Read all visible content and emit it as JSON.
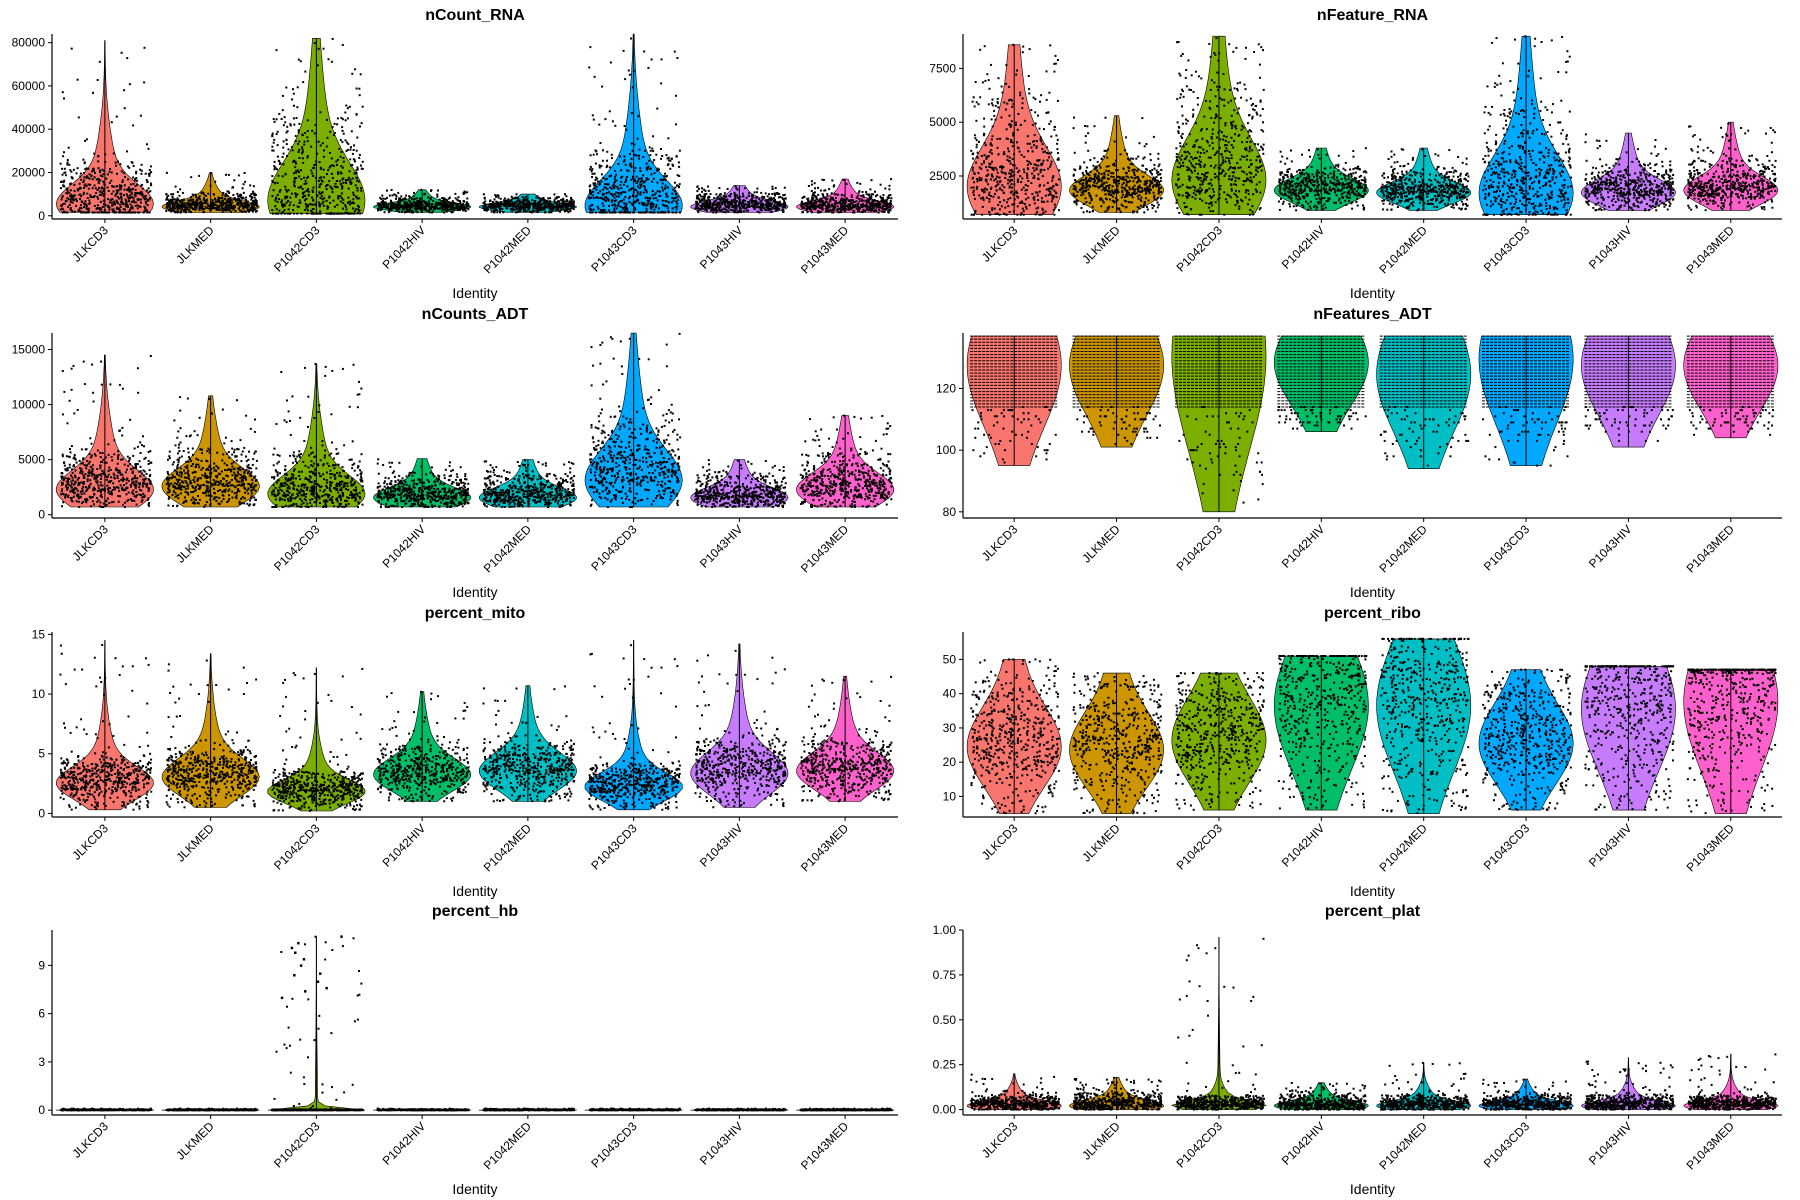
{
  "chart_data": [
    {
      "type": "violin",
      "title": "nCount_RNA",
      "xlabel": "Identity",
      "ylabel": "",
      "categories": [
        "JLKCD3",
        "JLKMED",
        "P1042CD3",
        "P1042HIV",
        "P1042MED",
        "P1043CD3",
        "P1043HIV",
        "P1043MED"
      ],
      "colors": [
        "#F8766D",
        "#CD9600",
        "#7CAE00",
        "#00BE67",
        "#00BFC4",
        "#00A9FF",
        "#C77CFF",
        "#FF61CC"
      ],
      "yticks": [
        "0",
        "20000",
        "40000",
        "60000",
        "80000"
      ],
      "ylim": [
        -1500,
        84000
      ],
      "distribution": [
        {
          "min": 1500,
          "mode": 5000,
          "q90": 25000,
          "max": 81000
        },
        {
          "min": 1500,
          "mode": 4000,
          "q90": 10000,
          "max": 20000
        },
        {
          "min": 1000,
          "mode": 6000,
          "q90": 45000,
          "max": 82000
        },
        {
          "min": 1500,
          "mode": 4000,
          "q90": 8000,
          "max": 12000
        },
        {
          "min": 1500,
          "mode": 4000,
          "q90": 8000,
          "max": 10000
        },
        {
          "min": 1500,
          "mode": 4000,
          "q90": 30000,
          "max": 84000
        },
        {
          "min": 1500,
          "mode": 4000,
          "q90": 10000,
          "max": 14000
        },
        {
          "min": 1500,
          "mode": 4000,
          "q90": 10000,
          "max": 17000
        }
      ]
    },
    {
      "type": "violin",
      "title": "nFeature_RNA",
      "xlabel": "Identity",
      "ylabel": "",
      "categories": [
        "JLKCD3",
        "JLKMED",
        "P1042CD3",
        "P1042HIV",
        "P1042MED",
        "P1043CD3",
        "P1043HIV",
        "P1043MED"
      ],
      "colors": [
        "#F8766D",
        "#CD9600",
        "#7CAE00",
        "#00BE67",
        "#00BFC4",
        "#00A9FF",
        "#C77CFF",
        "#FF61CC"
      ],
      "yticks": [
        "2500",
        "5000",
        "7500"
      ],
      "ylim": [
        500,
        9100
      ],
      "distribution": [
        {
          "min": 700,
          "mode": 1900,
          "q90": 6000,
          "max": 8600
        },
        {
          "min": 800,
          "mode": 1800,
          "q90": 3300,
          "max": 5300
        },
        {
          "min": 700,
          "mode": 2200,
          "q90": 6500,
          "max": 9000
        },
        {
          "min": 900,
          "mode": 1800,
          "q90": 2800,
          "max": 3800
        },
        {
          "min": 900,
          "mode": 1700,
          "q90": 2700,
          "max": 3800
        },
        {
          "min": 700,
          "mode": 1600,
          "q90": 5500,
          "max": 9000
        },
        {
          "min": 900,
          "mode": 1700,
          "q90": 3000,
          "max": 4500
        },
        {
          "min": 900,
          "mode": 1800,
          "q90": 3200,
          "max": 5000
        }
      ]
    },
    {
      "type": "violin",
      "title": "nCounts_ADT",
      "xlabel": "Identity",
      "ylabel": "",
      "categories": [
        "JLKCD3",
        "JLKMED",
        "P1042CD3",
        "P1042HIV",
        "P1042MED",
        "P1043CD3",
        "P1043HIV",
        "P1043MED"
      ],
      "colors": [
        "#F8766D",
        "#CD9600",
        "#7CAE00",
        "#00BE67",
        "#00BFC4",
        "#00A9FF",
        "#C77CFF",
        "#FF61CC"
      ],
      "yticks": [
        "0",
        "5000",
        "10000",
        "15000"
      ],
      "ylim": [
        -300,
        16500
      ],
      "distribution": [
        {
          "min": 700,
          "mode": 2200,
          "q90": 6000,
          "max": 14500
        },
        {
          "min": 700,
          "mode": 2500,
          "q90": 6000,
          "max": 10800
        },
        {
          "min": 700,
          "mode": 1800,
          "q90": 5500,
          "max": 13700
        },
        {
          "min": 700,
          "mode": 1500,
          "q90": 3500,
          "max": 5100
        },
        {
          "min": 700,
          "mode": 1500,
          "q90": 3500,
          "max": 5000
        },
        {
          "min": 700,
          "mode": 3000,
          "q90": 9000,
          "max": 16500
        },
        {
          "min": 700,
          "mode": 1500,
          "q90": 3500,
          "max": 5000
        },
        {
          "min": 700,
          "mode": 2200,
          "q90": 5500,
          "max": 9000
        }
      ]
    },
    {
      "type": "violin",
      "title": "nFeatures_ADT",
      "xlabel": "Identity",
      "ylabel": "",
      "categories": [
        "JLKCD3",
        "JLKMED",
        "P1042CD3",
        "P1042HIV",
        "P1042MED",
        "P1043CD3",
        "P1043HIV",
        "P1043MED"
      ],
      "colors": [
        "#F8766D",
        "#CD9600",
        "#7CAE00",
        "#00BE67",
        "#00BFC4",
        "#00A9FF",
        "#C77CFF",
        "#FF61CC"
      ],
      "yticks": [
        "80",
        "100",
        "120"
      ],
      "ylim": [
        78,
        138
      ],
      "distribution": [
        {
          "min": 95,
          "mode": 127,
          "q90": 136,
          "max": 137
        },
        {
          "min": 101,
          "mode": 127,
          "q90": 136,
          "max": 137
        },
        {
          "min": 80,
          "mode": 130,
          "q90": 136,
          "max": 137
        },
        {
          "min": 106,
          "mode": 128,
          "q90": 136,
          "max": 137
        },
        {
          "min": 94,
          "mode": 124,
          "q90": 136,
          "max": 137
        },
        {
          "min": 95,
          "mode": 129,
          "q90": 136,
          "max": 137
        },
        {
          "min": 101,
          "mode": 127,
          "q90": 136,
          "max": 137
        },
        {
          "min": 104,
          "mode": 127,
          "q90": 136,
          "max": 137
        }
      ]
    },
    {
      "type": "violin",
      "title": "percent_mito",
      "xlabel": "Identity",
      "ylabel": "",
      "categories": [
        "JLKCD3",
        "JLKMED",
        "P1042CD3",
        "P1042HIV",
        "P1042MED",
        "P1043CD3",
        "P1043HIV",
        "P1043MED"
      ],
      "colors": [
        "#F8766D",
        "#CD9600",
        "#7CAE00",
        "#00BE67",
        "#00BFC4",
        "#00A9FF",
        "#C77CFF",
        "#FF61CC"
      ],
      "yticks": [
        "0",
        "5",
        "10",
        "15"
      ],
      "ylim": [
        -0.3,
        15.2
      ],
      "distribution": [
        {
          "min": 0.3,
          "mode": 2.5,
          "q90": 4.5,
          "max": 14.5
        },
        {
          "min": 0.5,
          "mode": 3.0,
          "q90": 5.0,
          "max": 13.4
        },
        {
          "min": 0.2,
          "mode": 1.8,
          "q90": 3.5,
          "max": 12.2
        },
        {
          "min": 1.0,
          "mode": 3.2,
          "q90": 5.5,
          "max": 10.2
        },
        {
          "min": 1.0,
          "mode": 3.5,
          "q90": 5.5,
          "max": 10.7
        },
        {
          "min": 0.3,
          "mode": 2.2,
          "q90": 4.0,
          "max": 14.5
        },
        {
          "min": 0.5,
          "mode": 3.3,
          "q90": 6.0,
          "max": 14.2
        },
        {
          "min": 1.0,
          "mode": 3.5,
          "q90": 6.0,
          "max": 11.5
        }
      ]
    },
    {
      "type": "violin",
      "title": "percent_ribo",
      "xlabel": "Identity",
      "ylabel": "",
      "categories": [
        "JLKCD3",
        "JLKMED",
        "P1042CD3",
        "P1042HIV",
        "P1042MED",
        "P1043CD3",
        "P1043HIV",
        "P1043MED"
      ],
      "colors": [
        "#F8766D",
        "#CD9600",
        "#7CAE00",
        "#00BE67",
        "#00BFC4",
        "#00A9FF",
        "#C77CFF",
        "#FF61CC"
      ],
      "yticks": [
        "10",
        "20",
        "30",
        "40",
        "50"
      ],
      "ylim": [
        4,
        58
      ],
      "distribution": [
        {
          "min": 5,
          "mode": 24,
          "q90": 40,
          "max": 50
        },
        {
          "min": 5,
          "mode": 23,
          "q90": 42,
          "max": 46
        },
        {
          "min": 6,
          "mode": 26,
          "q90": 38,
          "max": 46
        },
        {
          "min": 6,
          "mode": 36,
          "q90": 45,
          "max": 51
        },
        {
          "min": 5,
          "mode": 36,
          "q90": 47,
          "max": 56
        },
        {
          "min": 6,
          "mode": 25,
          "q90": 40,
          "max": 47
        },
        {
          "min": 6,
          "mode": 35,
          "q90": 44,
          "max": 48
        },
        {
          "min": 5,
          "mode": 37,
          "q90": 46,
          "max": 47
        }
      ]
    },
    {
      "type": "violin",
      "title": "percent_hb",
      "xlabel": "Identity",
      "ylabel": "",
      "categories": [
        "JLKCD3",
        "JLKMED",
        "P1042CD3",
        "P1042HIV",
        "P1042MED",
        "P1043CD3",
        "P1043HIV",
        "P1043MED"
      ],
      "colors": [
        "#F8766D",
        "#CD9600",
        "#7CAE00",
        "#00BE67",
        "#00BFC4",
        "#00A9FF",
        "#C77CFF",
        "#FF61CC"
      ],
      "yticks": [
        "0",
        "3",
        "6",
        "9"
      ],
      "ylim": [
        -0.3,
        11.2
      ],
      "distribution": [
        {
          "min": 0,
          "mode": 0,
          "q90": 0.05,
          "max": 0.1
        },
        {
          "min": 0,
          "mode": 0,
          "q90": 0.05,
          "max": 0.1
        },
        {
          "min": 0,
          "mode": 0,
          "q90": 0.05,
          "max": 10.8
        },
        {
          "min": 0,
          "mode": 0,
          "q90": 0.05,
          "max": 0.1
        },
        {
          "min": 0,
          "mode": 0,
          "q90": 0.05,
          "max": 0.1
        },
        {
          "min": 0,
          "mode": 0,
          "q90": 0.05,
          "max": 0.1
        },
        {
          "min": 0,
          "mode": 0,
          "q90": 0.05,
          "max": 0.1
        },
        {
          "min": 0,
          "mode": 0,
          "q90": 0.05,
          "max": 0.1
        }
      ],
      "outliers": [
        {
          "category": "P1042CD3",
          "values": [
            10.8,
            10.4,
            10.1,
            9.8,
            9.4,
            9.0,
            8.5,
            8.4,
            8.0,
            7.6,
            7.4,
            7.0
          ]
        }
      ]
    },
    {
      "type": "violin",
      "title": "percent_plat",
      "xlabel": "Identity",
      "ylabel": "",
      "categories": [
        "JLKCD3",
        "JLKMED",
        "P1042CD3",
        "P1042HIV",
        "P1042MED",
        "P1043CD3",
        "P1043HIV",
        "P1043MED"
      ],
      "colors": [
        "#F8766D",
        "#CD9600",
        "#7CAE00",
        "#00BE67",
        "#00BFC4",
        "#00A9FF",
        "#C77CFF",
        "#FF61CC"
      ],
      "yticks": [
        "0.00",
        "0.25",
        "0.50",
        "0.75",
        "1.00"
      ],
      "ylim": [
        -0.03,
        1.0
      ],
      "distribution": [
        {
          "min": 0,
          "mode": 0.02,
          "q90": 0.08,
          "max": 0.2
        },
        {
          "min": 0,
          "mode": 0.02,
          "q90": 0.09,
          "max": 0.18
        },
        {
          "min": 0,
          "mode": 0.02,
          "q90": 0.08,
          "max": 0.96
        },
        {
          "min": 0,
          "mode": 0.02,
          "q90": 0.08,
          "max": 0.15
        },
        {
          "min": 0,
          "mode": 0.02,
          "q90": 0.08,
          "max": 0.26
        },
        {
          "min": 0,
          "mode": 0.02,
          "q90": 0.08,
          "max": 0.17
        },
        {
          "min": 0,
          "mode": 0.02,
          "q90": 0.08,
          "max": 0.29
        },
        {
          "min": 0,
          "mode": 0.02,
          "q90": 0.08,
          "max": 0.31
        }
      ]
    }
  ]
}
